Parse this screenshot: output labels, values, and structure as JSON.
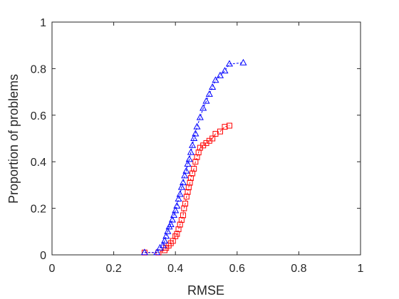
{
  "chart_data": {
    "type": "scatter",
    "title": "",
    "xlabel": "RMSE",
    "ylabel": "Proportion of problems",
    "xlim": [
      0,
      1
    ],
    "ylim": [
      0,
      1
    ],
    "x_ticks": [
      "0",
      "0.2",
      "0.4",
      "0.6",
      "0.8",
      "1"
    ],
    "y_ticks": [
      "0",
      "0.2",
      "0.4",
      "0.6",
      "0.8",
      "1"
    ],
    "grid": false,
    "legend": "none",
    "series": [
      {
        "marker": "square",
        "color": "#ff0000",
        "x": [
          0.3,
          0.345,
          0.365,
          0.37,
          0.378,
          0.385,
          0.392,
          0.4,
          0.405,
          0.41,
          0.415,
          0.42,
          0.425,
          0.428,
          0.432,
          0.436,
          0.44,
          0.443,
          0.447,
          0.45,
          0.455,
          0.46,
          0.465,
          0.47,
          0.475,
          0.48,
          0.49,
          0.5,
          0.51,
          0.52,
          0.53,
          0.545,
          0.56,
          0.575
        ],
        "y": [
          0.01,
          0.01,
          0.02,
          0.03,
          0.04,
          0.05,
          0.06,
          0.08,
          0.09,
          0.11,
          0.13,
          0.15,
          0.17,
          0.2,
          0.22,
          0.25,
          0.27,
          0.29,
          0.31,
          0.33,
          0.35,
          0.37,
          0.4,
          0.42,
          0.44,
          0.46,
          0.47,
          0.48,
          0.49,
          0.5,
          0.52,
          0.53,
          0.55,
          0.555
        ]
      },
      {
        "marker": "triangle",
        "color": "#0000ff",
        "x": [
          0.3,
          0.34,
          0.35,
          0.36,
          0.365,
          0.37,
          0.375,
          0.38,
          0.385,
          0.39,
          0.395,
          0.4,
          0.405,
          0.41,
          0.415,
          0.42,
          0.425,
          0.43,
          0.435,
          0.44,
          0.445,
          0.45,
          0.455,
          0.46,
          0.465,
          0.47,
          0.48,
          0.49,
          0.5,
          0.51,
          0.52,
          0.53,
          0.545,
          0.56,
          0.575,
          0.62
        ],
        "y": [
          0.01,
          0.01,
          0.03,
          0.04,
          0.06,
          0.08,
          0.1,
          0.12,
          0.13,
          0.15,
          0.17,
          0.19,
          0.21,
          0.24,
          0.26,
          0.29,
          0.31,
          0.34,
          0.36,
          0.39,
          0.41,
          0.44,
          0.47,
          0.5,
          0.52,
          0.55,
          0.59,
          0.63,
          0.66,
          0.69,
          0.72,
          0.75,
          0.77,
          0.79,
          0.82,
          0.825
        ]
      }
    ]
  }
}
